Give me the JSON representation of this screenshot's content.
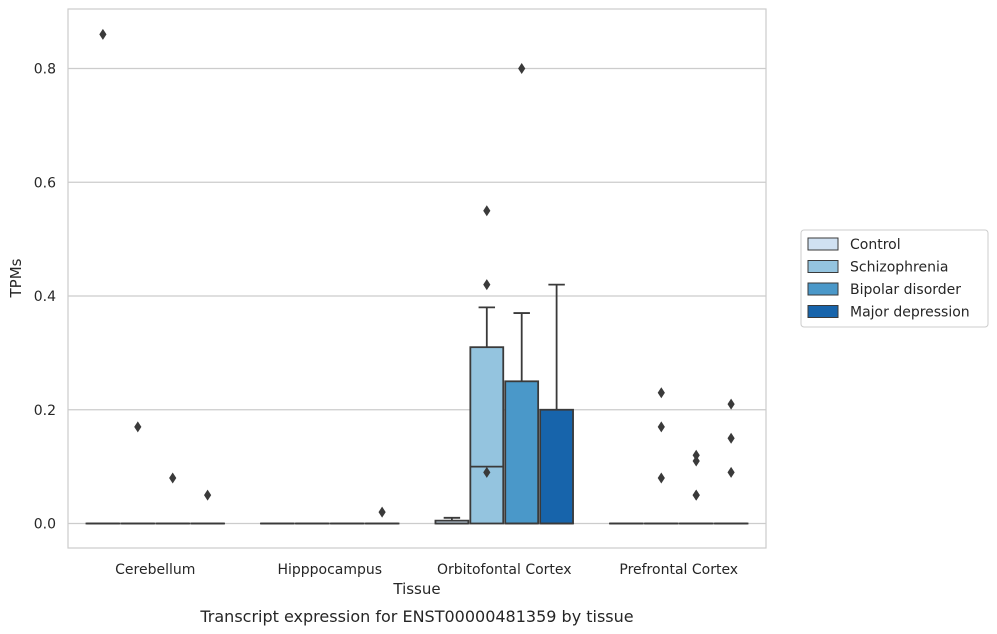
{
  "chart_data": {
    "type": "box",
    "title": "",
    "caption": "Transcript expression for ENST00000481359 by tissue",
    "xlabel": "Tissue",
    "ylabel": "TPMs",
    "ylim": [
      -0.04,
      0.9
    ],
    "yticks": [
      0.0,
      0.2,
      0.4,
      0.6,
      0.8
    ],
    "ytick_labels": [
      "0.0",
      "0.2",
      "0.4",
      "0.6",
      "0.8"
    ],
    "grid": "horizontal",
    "legend_position": "right",
    "categories": [
      "Cerebellum",
      "Hipppocampus",
      "Orbitofontal Cortex",
      "Prefrontal Cortex"
    ],
    "series": [
      {
        "name": "Control",
        "color": "#d0e1f2",
        "boxes": [
          {
            "category": "Cerebellum",
            "q1": 0,
            "median": 0,
            "q3": 0,
            "whisker_low": 0,
            "whisker_high": 0,
            "outliers": [
              0.86
            ]
          },
          {
            "category": "Hipppocampus",
            "q1": 0,
            "median": 0,
            "q3": 0,
            "whisker_low": 0,
            "whisker_high": 0,
            "outliers": []
          },
          {
            "category": "Orbitofontal Cortex",
            "q1": 0,
            "median": 0,
            "q3": 0.005,
            "whisker_low": 0,
            "whisker_high": 0.01,
            "outliers": []
          },
          {
            "category": "Prefrontal Cortex",
            "q1": 0,
            "median": 0,
            "q3": 0,
            "whisker_low": 0,
            "whisker_high": 0,
            "outliers": []
          }
        ]
      },
      {
        "name": "Schizophrenia",
        "color": "#94c4df",
        "boxes": [
          {
            "category": "Cerebellum",
            "q1": 0,
            "median": 0,
            "q3": 0,
            "whisker_low": 0,
            "whisker_high": 0,
            "outliers": [
              0.17
            ]
          },
          {
            "category": "Hipppocampus",
            "q1": 0,
            "median": 0,
            "q3": 0,
            "whisker_low": 0,
            "whisker_high": 0,
            "outliers": []
          },
          {
            "category": "Orbitofontal Cortex",
            "q1": 0,
            "median": 0.1,
            "q3": 0.31,
            "whisker_low": 0,
            "whisker_high": 0.38,
            "outliers": [
              0.55,
              0.42,
              0.09
            ]
          },
          {
            "category": "Prefrontal Cortex",
            "q1": 0,
            "median": 0,
            "q3": 0,
            "whisker_low": 0,
            "whisker_high": 0,
            "outliers": [
              0.23,
              0.17,
              0.08
            ]
          }
        ]
      },
      {
        "name": "Bipolar disorder",
        "color": "#4a98c9",
        "boxes": [
          {
            "category": "Cerebellum",
            "q1": 0,
            "median": 0,
            "q3": 0,
            "whisker_low": 0,
            "whisker_high": 0,
            "outliers": [
              0.08
            ]
          },
          {
            "category": "Hipppocampus",
            "q1": 0,
            "median": 0,
            "q3": 0,
            "whisker_low": 0,
            "whisker_high": 0,
            "outliers": []
          },
          {
            "category": "Orbitofontal Cortex",
            "q1": 0,
            "median": 0,
            "q3": 0.25,
            "whisker_low": 0,
            "whisker_high": 0.37,
            "outliers": [
              0.8
            ]
          },
          {
            "category": "Prefrontal Cortex",
            "q1": 0,
            "median": 0,
            "q3": 0,
            "whisker_low": 0,
            "whisker_high": 0,
            "outliers": [
              0.05,
              0.12,
              0.11,
              0.05
            ]
          }
        ]
      },
      {
        "name": "Major depression",
        "color": "#1764ab",
        "boxes": [
          {
            "category": "Cerebellum",
            "q1": 0,
            "median": 0,
            "q3": 0,
            "whisker_low": 0,
            "whisker_high": 0,
            "outliers": [
              0.05
            ]
          },
          {
            "category": "Hipppocampus",
            "q1": 0,
            "median": 0,
            "q3": 0,
            "whisker_low": 0,
            "whisker_high": 0,
            "outliers": [
              0.02
            ]
          },
          {
            "category": "Orbitofontal Cortex",
            "q1": 0,
            "median": 0,
            "q3": 0.2,
            "whisker_low": 0,
            "whisker_high": 0.42,
            "outliers": []
          },
          {
            "category": "Prefrontal Cortex",
            "q1": 0,
            "median": 0,
            "q3": 0,
            "whisker_low": 0,
            "whisker_high": 0,
            "outliers": [
              0.21,
              0.15,
              0.09
            ]
          }
        ]
      }
    ]
  }
}
